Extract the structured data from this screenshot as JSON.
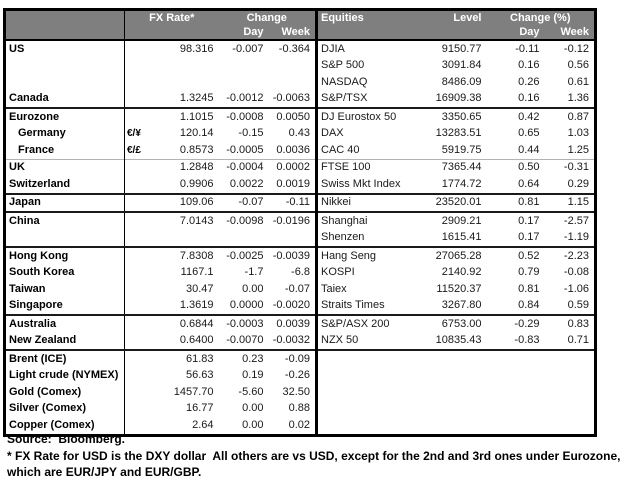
{
  "colors": {
    "header_bg": "#7f7f7f",
    "header_text": "#ffffff",
    "border": "#000000"
  },
  "header": {
    "fx_rate": "FX Rate*",
    "change": "Change",
    "day": "Day",
    "week": "Week",
    "equities": "Equities",
    "level": "Level",
    "change_pct": "Change (%)"
  },
  "table": {
    "rows": [
      {
        "label": "US",
        "pair": "",
        "fx": "98.316",
        "fx_day": "-0.007",
        "fx_week": "-0.364",
        "equity": "DJIA",
        "level": "9150.77",
        "eq_day": "-0.11",
        "eq_week": "-0.12",
        "sep": "none",
        "indent": false
      },
      {
        "label": "",
        "pair": "",
        "fx": "",
        "fx_day": "",
        "fx_week": "",
        "equity": "S&P 500",
        "level": "3091.84",
        "eq_day": "0.16",
        "eq_week": "0.56",
        "sep": "none",
        "indent": false
      },
      {
        "label": "",
        "pair": "",
        "fx": "",
        "fx_day": "",
        "fx_week": "",
        "equity": "NASDAQ",
        "level": "8486.09",
        "eq_day": "0.26",
        "eq_week": "0.61",
        "sep": "none",
        "indent": false
      },
      {
        "label": "Canada",
        "pair": "",
        "fx": "1.3245",
        "fx_day": "-0.0012",
        "fx_week": "-0.0063",
        "equity": "S&P/TSX",
        "level": "16909.38",
        "eq_day": "0.16",
        "eq_week": "1.36",
        "sep": "none",
        "indent": false
      },
      {
        "label": "Eurozone",
        "pair": "",
        "fx": "1.1015",
        "fx_day": "-0.0008",
        "fx_week": "0.0050",
        "equity": "DJ Eurostox 50",
        "level": "3350.65",
        "eq_day": "0.42",
        "eq_week": "0.87",
        "sep": "dark",
        "indent": false
      },
      {
        "label": "Germany",
        "pair": "€/¥",
        "fx": "120.14",
        "fx_day": "-0.15",
        "fx_week": "0.43",
        "equity": "DAX",
        "level": "13283.51",
        "eq_day": "0.65",
        "eq_week": "1.03",
        "sep": "none",
        "indent": true
      },
      {
        "label": "France",
        "pair": "€/£",
        "fx": "0.8573",
        "fx_day": "-0.0005",
        "fx_week": "0.0036",
        "equity": "CAC 40",
        "level": "5919.75",
        "eq_day": "0.44",
        "eq_week": "1.25",
        "sep": "none",
        "indent": true
      },
      {
        "label": "UK",
        "pair": "",
        "fx": "1.2848",
        "fx_day": "-0.0004",
        "fx_week": "0.0002",
        "equity": "FTSE 100",
        "level": "7365.44",
        "eq_day": "0.50",
        "eq_week": "-0.31",
        "sep": "light",
        "indent": false
      },
      {
        "label": "Switzerland",
        "pair": "",
        "fx": "0.9906",
        "fx_day": "0.0022",
        "fx_week": "0.0019",
        "equity": "Swiss Mkt Index",
        "level": "1774.72",
        "eq_day": "0.64",
        "eq_week": "0.29",
        "sep": "none",
        "indent": false
      },
      {
        "label": "Japan",
        "pair": "",
        "fx": "109.06",
        "fx_day": "-0.07",
        "fx_week": "-0.11",
        "equity": "Nikkei",
        "level": "23520.01",
        "eq_day": "0.81",
        "eq_week": "1.15",
        "sep": "dark",
        "indent": false
      },
      {
        "label": "China",
        "pair": "",
        "fx": "7.0143",
        "fx_day": "-0.0098",
        "fx_week": "-0.0196",
        "equity": "Shanghai",
        "level": "2909.21",
        "eq_day": "0.17",
        "eq_week": "-2.57",
        "sep": "dark",
        "indent": false
      },
      {
        "label": "",
        "pair": "",
        "fx": "",
        "fx_day": "",
        "fx_week": "",
        "equity": "Shenzen",
        "level": "1615.41",
        "eq_day": "0.17",
        "eq_week": "-1.19",
        "sep": "none",
        "indent": false
      },
      {
        "label": "Hong Kong",
        "pair": "",
        "fx": "7.8308",
        "fx_day": "-0.0025",
        "fx_week": "-0.0039",
        "equity": "Hang Seng",
        "level": "27065.28",
        "eq_day": "0.52",
        "eq_week": "-2.23",
        "sep": "dark",
        "indent": false
      },
      {
        "label": "South Korea",
        "pair": "",
        "fx": "1167.1",
        "fx_day": "-1.7",
        "fx_week": "-6.8",
        "equity": "KOSPI",
        "level": "2140.92",
        "eq_day": "0.79",
        "eq_week": "-0.08",
        "sep": "none",
        "indent": false
      },
      {
        "label": "Taiwan",
        "pair": "",
        "fx": "30.47",
        "fx_day": "0.00",
        "fx_week": "-0.07",
        "equity": "Taiex",
        "level": "11520.37",
        "eq_day": "0.81",
        "eq_week": "-1.06",
        "sep": "none",
        "indent": false
      },
      {
        "label": "Singapore",
        "pair": "",
        "fx": "1.3619",
        "fx_day": "0.0000",
        "fx_week": "-0.0020",
        "equity": "Straits Times",
        "level": "3267.80",
        "eq_day": "0.84",
        "eq_week": "0.59",
        "sep": "none",
        "indent": false
      },
      {
        "label": "Australia",
        "pair": "",
        "fx": "0.6844",
        "fx_day": "-0.0003",
        "fx_week": "0.0039",
        "equity": "S&P/ASX  200",
        "level": "6753.00",
        "eq_day": "-0.29",
        "eq_week": "0.83",
        "sep": "dark",
        "indent": false
      },
      {
        "label": "New Zealand",
        "pair": "",
        "fx": "0.6400",
        "fx_day": "-0.0070",
        "fx_week": "-0.0032",
        "equity": "NZX 50",
        "level": "10835.43",
        "eq_day": "-0.83",
        "eq_week": "0.71",
        "sep": "none",
        "indent": false
      },
      {
        "label": "Brent (ICE)",
        "pair": "",
        "fx": "61.83",
        "fx_day": "0.23",
        "fx_week": "-0.09",
        "equity": "",
        "level": "",
        "eq_day": "",
        "eq_week": "",
        "sep": "dark",
        "indent": false
      },
      {
        "label": "Light crude (NYMEX)",
        "pair": "",
        "fx": "56.63",
        "fx_day": "0.19",
        "fx_week": "-0.26",
        "equity": "",
        "level": "",
        "eq_day": "",
        "eq_week": "",
        "sep": "none",
        "indent": false
      },
      {
        "label": "Gold (Comex)",
        "pair": "",
        "fx": "1457.70",
        "fx_day": "-5.60",
        "fx_week": "32.50",
        "equity": "",
        "level": "",
        "eq_day": "",
        "eq_week": "",
        "sep": "none",
        "indent": false
      },
      {
        "label": "Silver (Comex)",
        "pair": "",
        "fx": "16.77",
        "fx_day": "0.00",
        "fx_week": "0.88",
        "equity": "",
        "level": "",
        "eq_day": "",
        "eq_week": "",
        "sep": "none",
        "indent": false
      },
      {
        "label": "Copper (Comex)",
        "pair": "",
        "fx": "2.64",
        "fx_day": "0.00",
        "fx_week": "0.02",
        "equity": "",
        "level": "",
        "eq_day": "",
        "eq_week": "",
        "sep": "none",
        "indent": false
      }
    ]
  },
  "footer": {
    "source": "Source:  Bloomberg.",
    "footnote_line1": "* FX Rate for USD is the DXY dollar  All others are vs USD, except for the 2nd and 3rd ones under Eurozone,",
    "footnote_line2": "which are EUR/JPY and EUR/GBP."
  }
}
